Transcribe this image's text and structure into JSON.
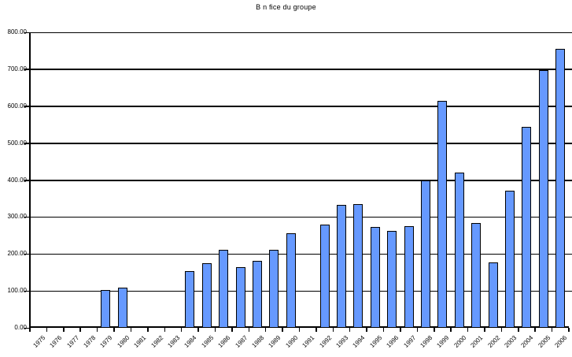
{
  "chart_data": {
    "type": "bar",
    "title": "B n fice du groupe",
    "categories": [
      "1975",
      "1976",
      "1977",
      "1978",
      "1979",
      "1980",
      "1981",
      "1982",
      "1983",
      "1984",
      "1985",
      "1986",
      "1987",
      "1988",
      "1989",
      "1990",
      "1991",
      "1992",
      "1993",
      "1994",
      "1995",
      "1996",
      "1997",
      "1998",
      "1999",
      "2000",
      "2001",
      "2002",
      "2003",
      "2004",
      "2005",
      "2006"
    ],
    "values": [
      0,
      0,
      0,
      0,
      103,
      108,
      0,
      0,
      0,
      153,
      175,
      211,
      165,
      182,
      212,
      256,
      0,
      280,
      332,
      336,
      274,
      262,
      276,
      400,
      614,
      421,
      283,
      177,
      372,
      545,
      697,
      755
    ],
    "xlabel": "",
    "ylabel": "",
    "ylim": [
      0,
      800
    ],
    "y_tick_step": 100,
    "y_ticks": [
      "0.00",
      "100.00",
      "200.00",
      "300.00",
      "400.00",
      "500.00",
      "600.00",
      "700.00",
      "800.00"
    ],
    "grid": "horizontal",
    "legend": "none"
  },
  "colors": {
    "bar_fill": "#6699FF",
    "bar_border": "#000000",
    "grid": "#000000",
    "axis": "#000000",
    "background": "#FFFFFF",
    "text": "#000000"
  }
}
